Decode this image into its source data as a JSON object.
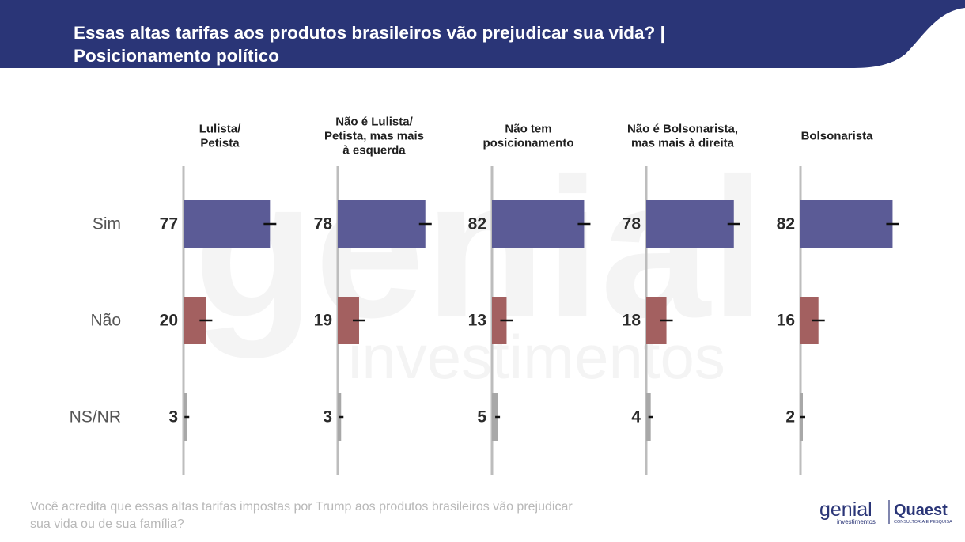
{
  "title_line1": "Essas altas tarifas aos produtos brasileiros vão prejudicar sua vida? |",
  "title_line2": "Posicionamento político",
  "question_line1": "Você acredita que essas altas tarifas impostas por Trump aos produtos brasileiros vão prejudicar",
  "question_line2": "sua vida ou de sua família?",
  "logos": {
    "genial": "genial",
    "genial_sub": "investimentos",
    "quaest": "Quaest",
    "quaest_sub": "CONSULTORIA E PESQUISA"
  },
  "watermark": {
    "main": "genial",
    "sub": "investimentos"
  },
  "colors": {
    "header": "#2a3577",
    "sim": "#5b5b96",
    "nao": "#a36060",
    "nsnr": "#a8a8a8",
    "axis": "#bdbdbd",
    "value_text": "#2b2b2b",
    "error_bar": "#111111"
  },
  "chart_data": {
    "type": "bar",
    "orientation": "horizontal",
    "categories": [
      "Sim",
      "Não",
      "NS/NR"
    ],
    "xlim": [
      0,
      100
    ],
    "grid": false,
    "panels": [
      {
        "group": "Lulista/ Petista",
        "group_lines": [
          "Lulista/",
          "Petista"
        ],
        "values": [
          77,
          20,
          3
        ],
        "labels": [
          "77",
          "20",
          "3"
        ]
      },
      {
        "group": "Não é Lulista/ Petista, mas mais à esquerda",
        "group_lines": [
          "Não é Lulista/",
          "Petista, mas mais",
          "à esquerda"
        ],
        "values": [
          78,
          19,
          3
        ],
        "labels": [
          "78",
          "19",
          "3"
        ]
      },
      {
        "group": "Não tem posicionamento",
        "group_lines": [
          "Não tem",
          "posicionamento"
        ],
        "values": [
          82,
          13,
          5
        ],
        "labels": [
          "82",
          "13",
          "5"
        ]
      },
      {
        "group": "Não é Bolsonarista, mas mais à direita",
        "group_lines": [
          "Não é Bolsonarista,",
          "mas mais à direita"
        ],
        "values": [
          78,
          18,
          4
        ],
        "labels": [
          "78",
          "18",
          "4"
        ]
      },
      {
        "group": "Bolsonarista",
        "group_lines": [
          "Bolsonarista"
        ],
        "values": [
          82,
          16,
          2
        ],
        "labels": [
          "82",
          "16",
          "2"
        ]
      }
    ]
  }
}
